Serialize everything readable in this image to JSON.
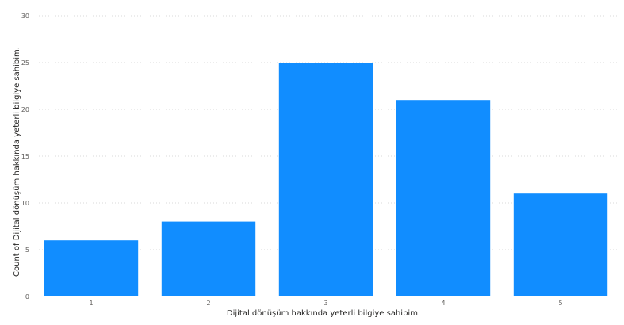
{
  "chart_data": {
    "type": "bar",
    "categories": [
      "1",
      "2",
      "3",
      "4",
      "5"
    ],
    "values": [
      6,
      8,
      25,
      21,
      11
    ],
    "title": "",
    "xlabel": "Dijital dönüşüm hakkında yeterli bilgiye sahibim.",
    "ylabel": "Count of Dijital dönüşüm hakkında yeterli bilgiye sahibim.",
    "ylim": [
      0,
      30
    ],
    "yticks": [
      "0",
      "5",
      "10",
      "15",
      "20",
      "25",
      "30"
    ],
    "grid": true,
    "bar_color": "#118DFF",
    "grid_color": "#d9d9d9"
  }
}
